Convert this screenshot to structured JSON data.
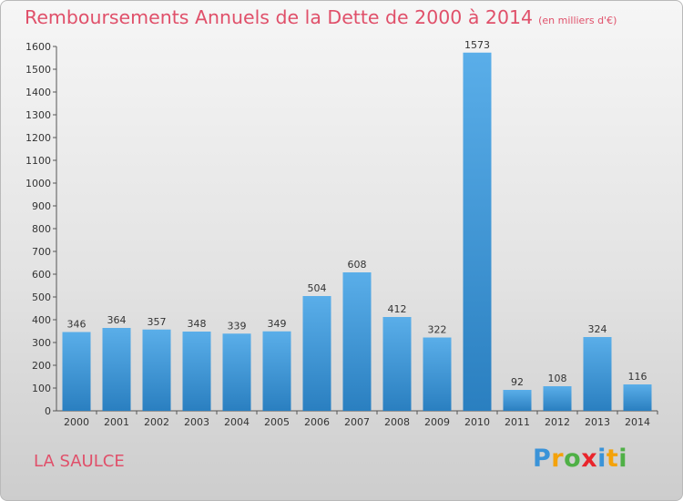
{
  "title": "Remboursements Annuels de la Dette de 2000 à 2014",
  "unit": "(en milliers d'€)",
  "commune": "LA SAULCE",
  "logo": {
    "p": "P",
    "r": "r",
    "o": "o",
    "x": "x",
    "i1": "i",
    "t": "t",
    "i2": "i"
  },
  "chart_data": {
    "type": "bar",
    "categories": [
      "2000",
      "2001",
      "2002",
      "2003",
      "2004",
      "2005",
      "2006",
      "2007",
      "2008",
      "2009",
      "2010",
      "2011",
      "2012",
      "2013",
      "2014"
    ],
    "values": [
      346,
      364,
      357,
      348,
      339,
      349,
      504,
      608,
      412,
      322,
      1573,
      92,
      108,
      324,
      116
    ],
    "ylim": [
      0,
      1600
    ],
    "yticks": [
      0,
      100,
      200,
      300,
      400,
      500,
      600,
      700,
      800,
      900,
      1000,
      1100,
      1200,
      1300,
      1400,
      1500,
      1600
    ],
    "grid": false,
    "colors": {
      "bar_light": "#5aaee9",
      "bar_dark": "#2a7fc0"
    }
  }
}
